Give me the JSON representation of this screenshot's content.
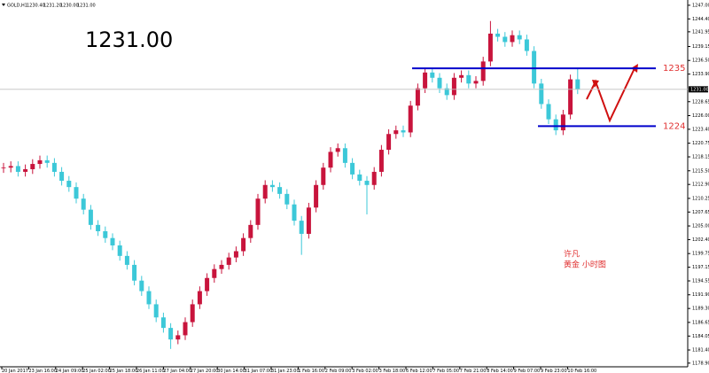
{
  "chart_data": {
    "type": "candlestick",
    "symbol": "GOLD,H1",
    "header_values": [
      {
        "value": 1230.4,
        "label": "1230.40"
      },
      {
        "value": 1231.2,
        "label": "1231.20"
      },
      {
        "value": 1230,
        "label": "1230.00"
      },
      {
        "value": 1231,
        "label": "1231.00"
      }
    ],
    "big_price": {
      "value": 1231,
      "label": "1231.00"
    },
    "current_price": {
      "value": 1231,
      "label": "1231.00"
    },
    "annotations": [
      "许凡",
      "黄金 小时图"
    ],
    "levels": [
      1235,
      1224
    ],
    "level_color": "#0000cc",
    "up_color": "#c8143c",
    "down_color": "#3cc8d8",
    "ylim": [
      1178.2,
      1248.0
    ],
    "yticks": [
      {
        "value": 1247,
        "label": "1247.00"
      },
      {
        "value": 1244.4,
        "label": "1244.40"
      },
      1241.95,
      1239.15,
      {
        "value": 1236.5,
        "label": "1236.50"
      },
      {
        "value": 1233.9,
        "label": "1233.90"
      },
      1228.65,
      {
        "value": 1226,
        "label": "1226.00"
      },
      {
        "value": 1223.4,
        "label": "1223.40"
      },
      1220.75,
      1218.15,
      {
        "value": 1215.5,
        "label": "1215.50"
      },
      {
        "value": 1212.9,
        "label": "1212.90"
      },
      1210.25,
      1207.65,
      {
        "value": 1205,
        "label": "1205.00"
      },
      {
        "value": 1202.4,
        "label": "1202.40"
      },
      1199.75,
      1197.15,
      1194.55,
      {
        "value": 1191.9,
        "label": "1191.90"
      },
      {
        "value": 1189.3,
        "label": "1189.30"
      },
      1186.65,
      1184.05,
      {
        "value": 1181.4,
        "label": "1181.40"
      },
      {
        "value": 1178.9,
        "label": "1178.90"
      }
    ],
    "xticks": [
      "20 Jan 2017",
      "23 Jan 16:00",
      "24 Jan 09:00",
      "25 Jan 02:00",
      "25 Jan 18:00",
      "26 Jan 11:00",
      "27 Jan 04:00",
      "27 Jan 20:00",
      "30 Jan 14:00",
      "31 Jan 07:00",
      "31 Jan 23:00",
      "1 Feb 16:00",
      "2 Feb 09:00",
      "3 Feb 02:00",
      "3 Feb 18:00",
      "6 Feb 12:00",
      "7 Feb 05:00",
      "7 Feb 21:00",
      "8 Feb 14:00",
      "9 Feb 07:00",
      "9 Feb 23:00",
      "10 Feb 16:00"
    ],
    "open": [
      1216.0,
      1216.1,
      1216.4,
      1215.3,
      1215.8,
      1216.8,
      1217.5,
      1217.0,
      1215.3,
      1213.6,
      1212.4,
      1210.2,
      1208.1,
      1205.2,
      1204.0,
      1202.7,
      1201.3,
      1199.3,
      1197.6,
      1194.6,
      1192.6,
      1190.1,
      1187.6,
      1185.6,
      1183.4,
      1184.2,
      1186.7,
      1190.1,
      1192.6,
      1195.1,
      1196.8,
      1197.6,
      1199.0,
      1200.2,
      1202.7,
      1205.2,
      1210.2,
      1212.8,
      1212.4,
      1211.1,
      1209.1,
      1206.0,
      1203.5,
      1208.5,
      1212.8,
      1216.1,
      1219.1,
      1219.8,
      1217.0,
      1214.8,
      1213.6,
      1212.8,
      1215.3,
      1219.5,
      1222.5,
      1223.2,
      1222.8,
      1227.9,
      1231.2,
      1234.2,
      1233.2,
      1231.2,
      1229.9,
      1233.2,
      1233.7,
      1232.1,
      1232.6,
      1236.3,
      1241.6,
      1241.0,
      1240.0,
      1241.3,
      1240.5,
      1238.3,
      1232.1,
      1228.2,
      1225.3,
      1223.2,
      1226.2,
      1232.9
    ],
    "high": [
      1217.0,
      1217.3,
      1217.3,
      1216.7,
      1217.7,
      1218.4,
      1218.4,
      1217.9,
      1216.2,
      1214.5,
      1213.3,
      1211.1,
      1209.0,
      1206.1,
      1204.9,
      1203.6,
      1202.2,
      1200.2,
      1198.5,
      1195.5,
      1193.5,
      1191.0,
      1188.5,
      1186.5,
      1185.1,
      1187.6,
      1191.0,
      1193.5,
      1196.0,
      1197.7,
      1198.5,
      1199.9,
      1201.1,
      1203.6,
      1206.1,
      1211.1,
      1213.7,
      1213.7,
      1213.3,
      1212.0,
      1210.0,
      1206.9,
      1209.4,
      1213.7,
      1217.0,
      1220.0,
      1220.7,
      1220.7,
      1217.9,
      1215.7,
      1214.5,
      1216.2,
      1220.4,
      1223.4,
      1224.1,
      1224.1,
      1228.8,
      1232.1,
      1235.1,
      1235.1,
      1234.1,
      1232.1,
      1234.1,
      1234.6,
      1234.6,
      1233.5,
      1237.2,
      1244.0,
      1242.5,
      1241.9,
      1242.2,
      1242.2,
      1241.4,
      1239.2,
      1233.0,
      1229.1,
      1226.2,
      1227.1,
      1233.8,
      1235.0
    ],
    "low": [
      1215.1,
      1215.2,
      1214.4,
      1214.4,
      1214.9,
      1215.9,
      1216.1,
      1214.4,
      1212.7,
      1211.5,
      1209.3,
      1207.2,
      1204.3,
      1203.1,
      1201.8,
      1200.4,
      1198.4,
      1196.7,
      1193.7,
      1191.7,
      1189.2,
      1186.7,
      1184.7,
      1181.6,
      1182.5,
      1183.3,
      1185.8,
      1189.2,
      1191.7,
      1194.2,
      1195.9,
      1196.7,
      1198.1,
      1199.3,
      1201.8,
      1204.3,
      1209.3,
      1211.5,
      1210.2,
      1208.2,
      1205.1,
      1199.5,
      1202.6,
      1207.6,
      1211.9,
      1215.2,
      1218.2,
      1216.1,
      1213.9,
      1212.7,
      1207.2,
      1211.9,
      1214.4,
      1218.6,
      1221.6,
      1221.9,
      1221.9,
      1227.0,
      1230.3,
      1232.3,
      1230.3,
      1229.0,
      1229.0,
      1232.3,
      1231.2,
      1231.2,
      1231.7,
      1235.4,
      1240.1,
      1239.1,
      1239.1,
      1239.6,
      1237.4,
      1231.2,
      1227.3,
      1224.4,
      1222.3,
      1222.3,
      1225.3,
      1230.1
    ],
    "close": [
      1216.1,
      1216.4,
      1215.3,
      1215.8,
      1216.8,
      1217.5,
      1217.0,
      1215.3,
      1213.6,
      1212.4,
      1210.2,
      1208.1,
      1205.2,
      1204.0,
      1202.7,
      1201.3,
      1199.3,
      1197.6,
      1194.6,
      1192.6,
      1190.1,
      1187.6,
      1185.6,
      1183.4,
      1184.2,
      1186.7,
      1190.1,
      1192.6,
      1195.1,
      1196.8,
      1197.6,
      1199.0,
      1200.2,
      1202.7,
      1205.2,
      1210.2,
      1212.8,
      1212.4,
      1211.1,
      1209.1,
      1206.0,
      1203.5,
      1208.5,
      1212.8,
      1216.1,
      1219.1,
      1219.8,
      1217.0,
      1214.8,
      1213.6,
      1212.8,
      1215.3,
      1219.5,
      1222.5,
      1223.2,
      1222.8,
      1227.9,
      1231.2,
      1234.2,
      1233.2,
      1231.2,
      1229.9,
      1233.2,
      1233.7,
      1232.1,
      1232.6,
      1236.3,
      1241.6,
      1241.0,
      1240.0,
      1241.3,
      1240.5,
      1238.3,
      1232.1,
      1228.2,
      1225.3,
      1223.2,
      1226.2,
      1232.9,
      1231.0
    ]
  }
}
